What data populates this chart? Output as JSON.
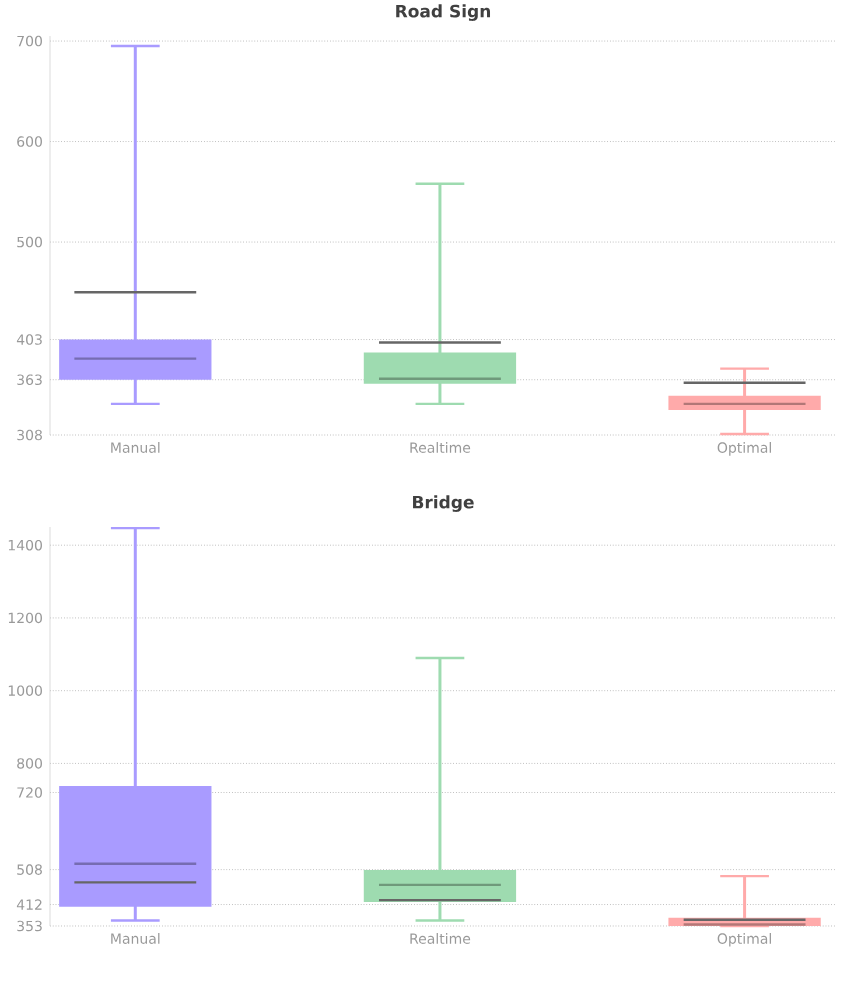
{
  "chart_data": [
    {
      "type": "box",
      "title": "Road Sign",
      "categories": [
        "Manual",
        "Realtime",
        "Optimal"
      ],
      "colors": [
        "#a99bff",
        "#9edbb0",
        "#ffaaaa"
      ],
      "boxes": [
        {
          "low": 339,
          "q1": 363,
          "median": 384,
          "q3": 403,
          "high": 695,
          "mean": 450
        },
        {
          "low": 339,
          "q1": 359,
          "median": 364,
          "q3": 390,
          "high": 558,
          "mean": 400
        },
        {
          "low": 309,
          "q1": 333,
          "median": 339,
          "q3": 347,
          "high": 374,
          "mean": 360
        }
      ],
      "ylim": [
        308,
        705
      ],
      "yticks": [
        308,
        363,
        403,
        500,
        600,
        700
      ],
      "grid": "y"
    },
    {
      "type": "box",
      "title": "Bridge",
      "categories": [
        "Manual",
        "Realtime",
        "Optimal"
      ],
      "colors": [
        "#a99bff",
        "#9edbb0",
        "#ffaaaa"
      ],
      "boxes": [
        {
          "low": 368,
          "q1": 406,
          "median": 524,
          "q3": 738,
          "high": 1447,
          "mean": 473
        },
        {
          "low": 368,
          "q1": 419,
          "median": 466,
          "q3": 507,
          "high": 1090,
          "mean": 424
        },
        {
          "low": 353,
          "q1": 353,
          "median": 357,
          "q3": 376,
          "high": 490,
          "mean": 370
        }
      ],
      "ylim": [
        353,
        1450
      ],
      "yticks": [
        353,
        412,
        508,
        720,
        800,
        1000,
        1200,
        1400
      ],
      "grid": "y"
    }
  ]
}
